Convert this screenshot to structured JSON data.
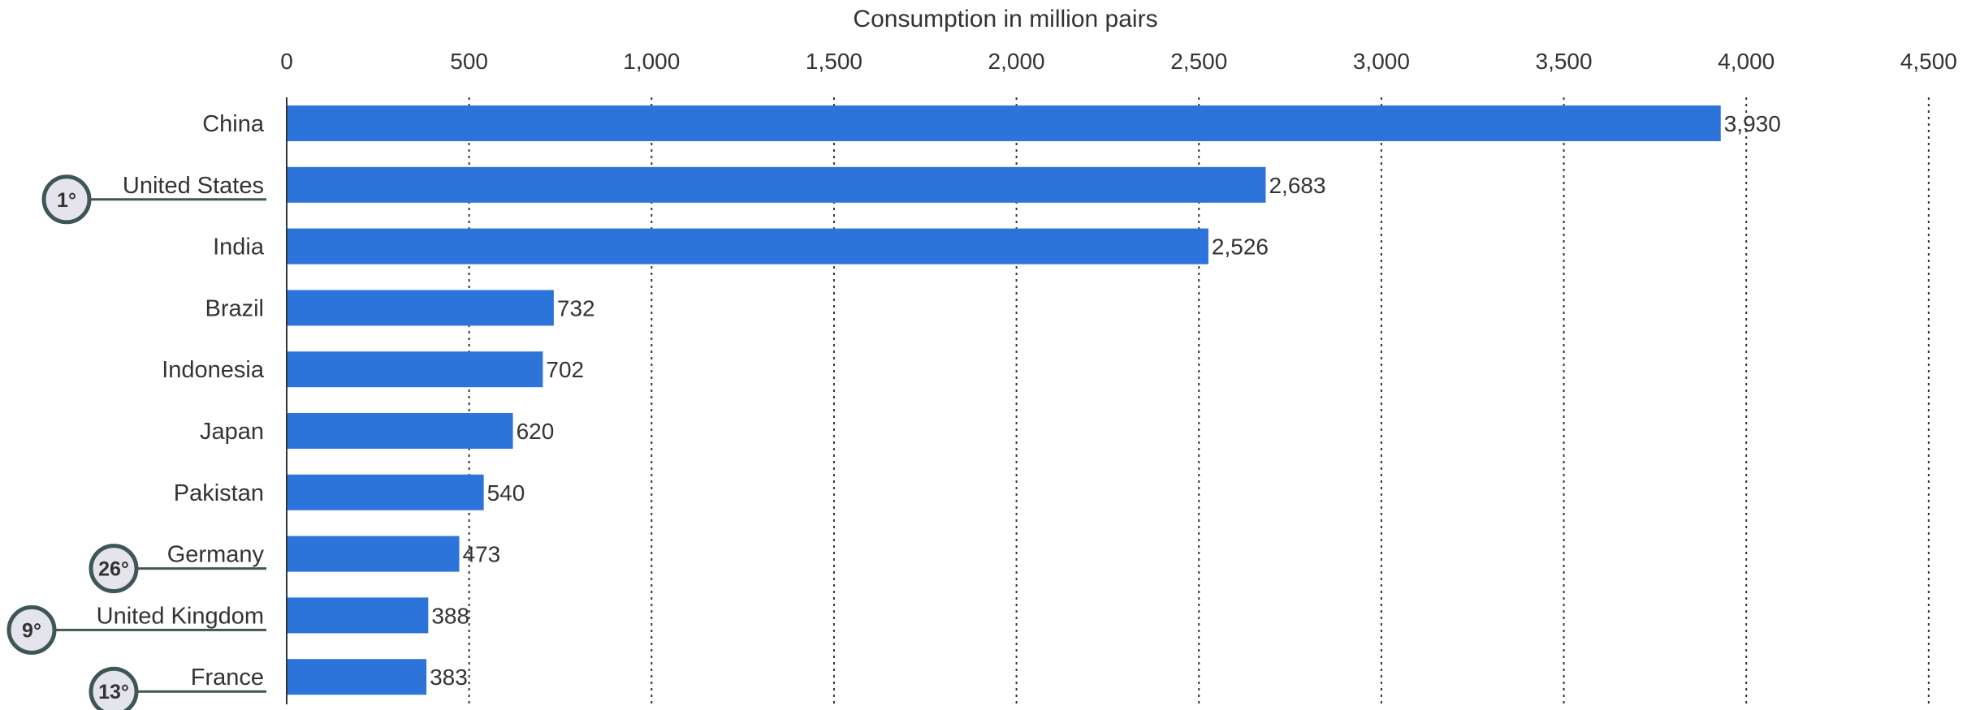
{
  "chart_data": {
    "type": "bar",
    "orientation": "horizontal",
    "xlabel": "Consumption in million pairs",
    "xlim": [
      0,
      4500
    ],
    "xticks": [
      0,
      500,
      1000,
      1500,
      2000,
      2500,
      3000,
      3500,
      4000,
      4500
    ],
    "xtick_labels": [
      "0",
      "500",
      "1,000",
      "1,500",
      "2,000",
      "2,500",
      "3,000",
      "3,500",
      "4,000",
      "4,500"
    ],
    "grid": true,
    "categories": [
      "China",
      "United States",
      "India",
      "Brazil",
      "Indonesia",
      "Japan",
      "Pakistan",
      "Germany",
      "United Kingdom",
      "France"
    ],
    "values": [
      3930,
      2683,
      2526,
      732,
      702,
      620,
      540,
      473,
      388,
      383
    ],
    "value_labels": [
      "3,930",
      "2,683",
      "2,526",
      "732",
      "702",
      "620",
      "540",
      "473",
      "388",
      "383"
    ],
    "annotations": [
      {
        "category": "United States",
        "text": "1°"
      },
      {
        "category": "Germany",
        "text": "26°"
      },
      {
        "category": "United Kingdom",
        "text": "9°"
      },
      {
        "category": "France",
        "text": "13°"
      }
    ],
    "colors": {
      "bar": "#2d74da",
      "text": "#333333",
      "grid": "#333333",
      "badge_fill": "#e4e4ec",
      "badge_stroke": "#3e5656"
    }
  }
}
